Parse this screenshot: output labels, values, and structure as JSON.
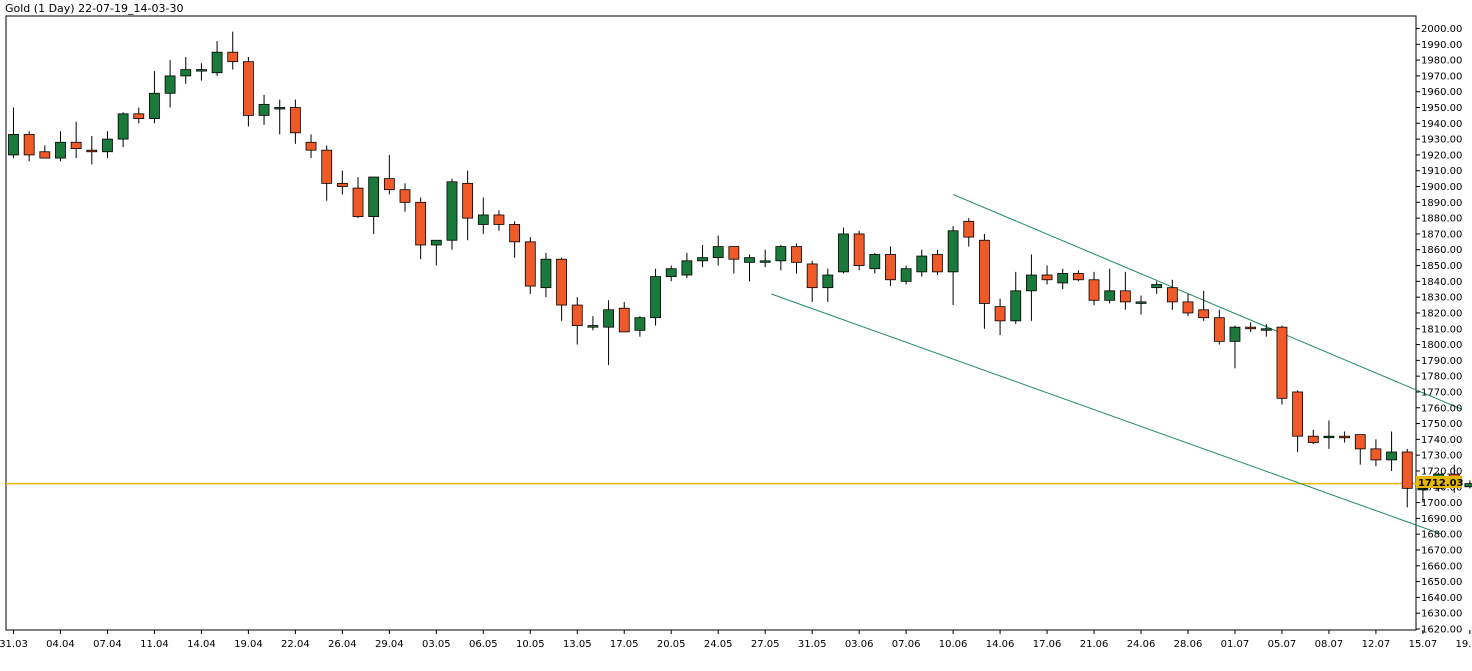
{
  "window": {
    "title": "Gold (1 Day) 22-07-19_14-03-30"
  },
  "chart_data": {
    "type": "candlestick",
    "title": "Gold (1 Day) 22-07-19_14-03-30",
    "colors": {
      "up": "#1a7a3c",
      "down": "#f05a28",
      "wick": "#000000",
      "price_line": "#e6b800",
      "channel": "#1a8a5a",
      "grid_axis": "#000000"
    },
    "ylim": [
      1620,
      2000
    ],
    "yticks": [
      2000,
      1990,
      1980,
      1970,
      1960,
      1950,
      1940,
      1930,
      1920,
      1910,
      1900,
      1890,
      1880,
      1870,
      1860,
      1850,
      1840,
      1830,
      1820,
      1810,
      1800,
      1790,
      1780,
      1770,
      1760,
      1750,
      1740,
      1730,
      1720,
      1710,
      1700,
      1690,
      1680,
      1670,
      1660,
      1650,
      1640,
      1630,
      1620
    ],
    "ytick_labels": [
      "2000.00",
      "1990.00",
      "1980.00",
      "1970.00",
      "1960.00",
      "1950.00",
      "1940.00",
      "1930.00",
      "1920.00",
      "1910.00",
      "1900.00",
      "1890.00",
      "1880.00",
      "1870.00",
      "1860.00",
      "1850.00",
      "1840.00",
      "1830.00",
      "1820.00",
      "1810.00",
      "1800.00",
      "1790.00",
      "1780.00",
      "1770.00",
      "1760.00",
      "1750.00",
      "1740.00",
      "1730.00",
      "1720.00",
      "1710.00",
      "1700.00",
      "1690.00",
      "1680.00",
      "1670.00",
      "1660.00",
      "1650.00",
      "1640.00",
      "1630.00",
      "1620.00"
    ],
    "xtick_labels": [
      {
        "i": 0,
        "label": "31.03"
      },
      {
        "i": 3,
        "label": "04.04"
      },
      {
        "i": 6,
        "label": "07.04"
      },
      {
        "i": 9,
        "label": "11.04"
      },
      {
        "i": 12,
        "label": "14.04"
      },
      {
        "i": 15,
        "label": "19.04"
      },
      {
        "i": 18,
        "label": "22.04"
      },
      {
        "i": 21,
        "label": "26.04"
      },
      {
        "i": 24,
        "label": "29.04"
      },
      {
        "i": 27,
        "label": "03.05"
      },
      {
        "i": 30,
        "label": "06.05"
      },
      {
        "i": 33,
        "label": "10.05"
      },
      {
        "i": 36,
        "label": "13.05"
      },
      {
        "i": 39,
        "label": "17.05"
      },
      {
        "i": 42,
        "label": "20.05"
      },
      {
        "i": 45,
        "label": "24.05"
      },
      {
        "i": 48,
        "label": "27.05"
      },
      {
        "i": 51,
        "label": "31.05"
      },
      {
        "i": 54,
        "label": "03.06"
      },
      {
        "i": 57,
        "label": "07.06"
      },
      {
        "i": 60,
        "label": "10.06"
      },
      {
        "i": 63,
        "label": "14.06"
      },
      {
        "i": 66,
        "label": "17.06"
      },
      {
        "i": 69,
        "label": "21.06"
      },
      {
        "i": 72,
        "label": "24.06"
      },
      {
        "i": 75,
        "label": "28.06"
      },
      {
        "i": 78,
        "label": "01.07"
      },
      {
        "i": 81,
        "label": "05.07"
      },
      {
        "i": 84,
        "label": "08.07"
      },
      {
        "i": 87,
        "label": "12.07"
      },
      {
        "i": 90,
        "label": "15.07"
      },
      {
        "i": 93,
        "label": "19.07"
      }
    ],
    "candles": [
      {
        "o": 1920,
        "h": 1950,
        "l": 1918,
        "c": 1933
      },
      {
        "o": 1933,
        "h": 1935,
        "l": 1916,
        "c": 1920
      },
      {
        "o": 1922,
        "h": 1926,
        "l": 1918,
        "c": 1918
      },
      {
        "o": 1918,
        "h": 1935,
        "l": 1916,
        "c": 1928
      },
      {
        "o": 1928,
        "h": 1941,
        "l": 1918,
        "c": 1924
      },
      {
        "o": 1923,
        "h": 1932,
        "l": 1914,
        "c": 1922
      },
      {
        "o": 1922,
        "h": 1935,
        "l": 1918,
        "c": 1930
      },
      {
        "o": 1930,
        "h": 1947,
        "l": 1925,
        "c": 1946
      },
      {
        "o": 1946,
        "h": 1950,
        "l": 1940,
        "c": 1943
      },
      {
        "o": 1943,
        "h": 1973,
        "l": 1940,
        "c": 1959
      },
      {
        "o": 1959,
        "h": 1980,
        "l": 1950,
        "c": 1970
      },
      {
        "o": 1970,
        "h": 1982,
        "l": 1965,
        "c": 1974
      },
      {
        "o": 1974,
        "h": 1978,
        "l": 1967,
        "c": 1974
      },
      {
        "o": 1972,
        "h": 1992,
        "l": 1970,
        "c": 1985
      },
      {
        "o": 1985,
        "h": 1998,
        "l": 1974,
        "c": 1979
      },
      {
        "o": 1979,
        "h": 1982,
        "l": 1938,
        "c": 1945
      },
      {
        "o": 1945,
        "h": 1958,
        "l": 1939,
        "c": 1952
      },
      {
        "o": 1950,
        "h": 1955,
        "l": 1933,
        "c": 1950
      },
      {
        "o": 1950,
        "h": 1955,
        "l": 1927,
        "c": 1934
      },
      {
        "o": 1928,
        "h": 1933,
        "l": 1918,
        "c": 1923
      },
      {
        "o": 1923,
        "h": 1926,
        "l": 1891,
        "c": 1902
      },
      {
        "o": 1902,
        "h": 1910,
        "l": 1895,
        "c": 1900
      },
      {
        "o": 1899,
        "h": 1906,
        "l": 1880,
        "c": 1881
      },
      {
        "o": 1881,
        "h": 1905,
        "l": 1870,
        "c": 1906
      },
      {
        "o": 1905,
        "h": 1920,
        "l": 1895,
        "c": 1898
      },
      {
        "o": 1898,
        "h": 1902,
        "l": 1884,
        "c": 1890
      },
      {
        "o": 1890,
        "h": 1893,
        "l": 1854,
        "c": 1863
      },
      {
        "o": 1863,
        "h": 1866,
        "l": 1850,
        "c": 1866
      },
      {
        "o": 1866,
        "h": 1905,
        "l": 1860,
        "c": 1903
      },
      {
        "o": 1902,
        "h": 1910,
        "l": 1866,
        "c": 1880
      },
      {
        "o": 1876,
        "h": 1893,
        "l": 1870,
        "c": 1882
      },
      {
        "o": 1882,
        "h": 1885,
        "l": 1872,
        "c": 1876
      },
      {
        "o": 1876,
        "h": 1878,
        "l": 1855,
        "c": 1865
      },
      {
        "o": 1865,
        "h": 1868,
        "l": 1832,
        "c": 1837
      },
      {
        "o": 1836,
        "h": 1858,
        "l": 1830,
        "c": 1854
      },
      {
        "o": 1854,
        "h": 1855,
        "l": 1815,
        "c": 1825
      },
      {
        "o": 1825,
        "h": 1830,
        "l": 1800,
        "c": 1812
      },
      {
        "o": 1811,
        "h": 1818,
        "l": 1809,
        "c": 1812
      },
      {
        "o": 1811,
        "h": 1828,
        "l": 1787,
        "c": 1822
      },
      {
        "o": 1823,
        "h": 1827,
        "l": 1808,
        "c": 1808
      },
      {
        "o": 1809,
        "h": 1818,
        "l": 1805,
        "c": 1817
      },
      {
        "o": 1817,
        "h": 1848,
        "l": 1812,
        "c": 1843
      },
      {
        "o": 1843,
        "h": 1850,
        "l": 1840,
        "c": 1848
      },
      {
        "o": 1844,
        "h": 1858,
        "l": 1842,
        "c": 1853
      },
      {
        "o": 1853,
        "h": 1863,
        "l": 1849,
        "c": 1855
      },
      {
        "o": 1855,
        "h": 1869,
        "l": 1850,
        "c": 1862
      },
      {
        "o": 1862,
        "h": 1862,
        "l": 1845,
        "c": 1854
      },
      {
        "o": 1852,
        "h": 1857,
        "l": 1840,
        "c": 1855
      },
      {
        "o": 1853,
        "h": 1860,
        "l": 1849,
        "c": 1853
      },
      {
        "o": 1853,
        "h": 1863,
        "l": 1847,
        "c": 1862
      },
      {
        "o": 1862,
        "h": 1864,
        "l": 1845,
        "c": 1852
      },
      {
        "o": 1851,
        "h": 1853,
        "l": 1827,
        "c": 1836
      },
      {
        "o": 1836,
        "h": 1848,
        "l": 1827,
        "c": 1844
      },
      {
        "o": 1846,
        "h": 1874,
        "l": 1845,
        "c": 1870
      },
      {
        "o": 1870,
        "h": 1872,
        "l": 1847,
        "c": 1850
      },
      {
        "o": 1848,
        "h": 1858,
        "l": 1845,
        "c": 1857
      },
      {
        "o": 1857,
        "h": 1862,
        "l": 1837,
        "c": 1841
      },
      {
        "o": 1840,
        "h": 1850,
        "l": 1838,
        "c": 1848
      },
      {
        "o": 1846,
        "h": 1860,
        "l": 1843,
        "c": 1856
      },
      {
        "o": 1857,
        "h": 1860,
        "l": 1844,
        "c": 1846
      },
      {
        "o": 1846,
        "h": 1875,
        "l": 1825,
        "c": 1872
      },
      {
        "o": 1878,
        "h": 1880,
        "l": 1862,
        "c": 1868
      },
      {
        "o": 1866,
        "h": 1870,
        "l": 1810,
        "c": 1826
      },
      {
        "o": 1824,
        "h": 1829,
        "l": 1806,
        "c": 1815
      },
      {
        "o": 1815,
        "h": 1846,
        "l": 1813,
        "c": 1834
      },
      {
        "o": 1834,
        "h": 1857,
        "l": 1815,
        "c": 1844
      },
      {
        "o": 1844,
        "h": 1850,
        "l": 1838,
        "c": 1841
      },
      {
        "o": 1839,
        "h": 1848,
        "l": 1835,
        "c": 1845
      },
      {
        "o": 1845,
        "h": 1847,
        "l": 1840,
        "c": 1841
      },
      {
        "o": 1841,
        "h": 1846,
        "l": 1825,
        "c": 1828
      },
      {
        "o": 1828,
        "h": 1848,
        "l": 1826,
        "c": 1834
      },
      {
        "o": 1834,
        "h": 1846,
        "l": 1822,
        "c": 1827
      },
      {
        "o": 1827,
        "h": 1831,
        "l": 1819,
        "c": 1827
      },
      {
        "o": 1836,
        "h": 1840,
        "l": 1832,
        "c": 1838
      },
      {
        "o": 1836,
        "h": 1841,
        "l": 1822,
        "c": 1827
      },
      {
        "o": 1827,
        "h": 1832,
        "l": 1818,
        "c": 1820
      },
      {
        "o": 1822,
        "h": 1834,
        "l": 1815,
        "c": 1817
      },
      {
        "o": 1817,
        "h": 1822,
        "l": 1800,
        "c": 1802
      },
      {
        "o": 1802,
        "h": 1812,
        "l": 1785,
        "c": 1811
      },
      {
        "o": 1811,
        "h": 1814,
        "l": 1808,
        "c": 1810
      },
      {
        "o": 1810,
        "h": 1813,
        "l": 1805,
        "c": 1810
      },
      {
        "o": 1811,
        "h": 1812,
        "l": 1762,
        "c": 1766
      },
      {
        "o": 1770,
        "h": 1771,
        "l": 1732,
        "c": 1742
      },
      {
        "o": 1742,
        "h": 1746,
        "l": 1737,
        "c": 1738
      },
      {
        "o": 1742,
        "h": 1752,
        "l": 1734,
        "c": 1742
      },
      {
        "o": 1742,
        "h": 1745,
        "l": 1738,
        "c": 1741
      },
      {
        "o": 1743,
        "h": 1743,
        "l": 1724,
        "c": 1734
      },
      {
        "o": 1734,
        "h": 1740,
        "l": 1723,
        "c": 1727
      },
      {
        "o": 1727,
        "h": 1745,
        "l": 1720,
        "c": 1732
      },
      {
        "o": 1732,
        "h": 1734,
        "l": 1697,
        "c": 1709
      },
      {
        "o": 1709,
        "h": 1716,
        "l": 1700,
        "c": 1709
      },
      {
        "o": 1709,
        "h": 1719,
        "l": 1707,
        "c": 1718
      },
      {
        "o": 1718,
        "h": 1724,
        "l": 1706,
        "c": 1712
      },
      {
        "o": 1710,
        "h": 1714,
        "l": 1709,
        "c": 1712
      }
    ],
    "current_price": 1712.03,
    "current_price_label": "1712.03",
    "channel_lines": [
      {
        "name": "upper-channel",
        "i0": 60,
        "p0": 1895,
        "i1": 92.5,
        "p1": 1759
      },
      {
        "name": "lower-channel",
        "i0": 48.4,
        "p0": 1832,
        "i1": 91.2,
        "p1": 1680
      }
    ]
  }
}
